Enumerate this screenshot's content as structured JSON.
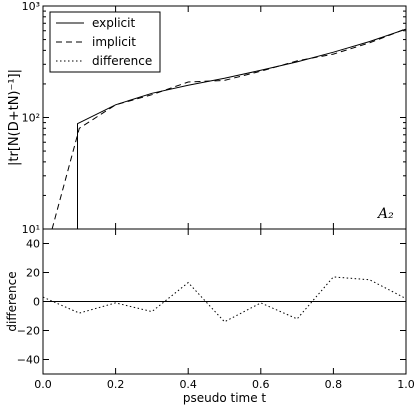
{
  "chart_data": [
    {
      "type": "line",
      "y_scale": "log",
      "ylim": [
        10,
        1000
      ],
      "xlim": [
        0.0,
        1.0
      ],
      "ylabel": "|tr[N(D+tN)⁻¹]|",
      "y_tick_labels": [
        "10¹",
        "10²",
        "10³"
      ],
      "y_tick_values": [
        10,
        100,
        1000
      ],
      "annotation": "A₂",
      "legend": {
        "placement": "top-left",
        "entries": [
          "explicit",
          "implicit",
          "difference"
        ]
      },
      "series": [
        {
          "name": "explicit",
          "style": "solid",
          "x": [
            0.095,
            0.095,
            0.2,
            0.3,
            0.4,
            0.5,
            0.6,
            0.7,
            0.8,
            0.9,
            1.0
          ],
          "y": [
            10,
            88,
            130,
            165,
            195,
            225,
            265,
            315,
            385,
            480,
            620
          ]
        },
        {
          "name": "implicit",
          "style": "dashed",
          "x": [
            0.025,
            0.1,
            0.2,
            0.3,
            0.4,
            0.5,
            0.6,
            0.7,
            0.8,
            0.9,
            1.0
          ],
          "y": [
            10,
            80,
            130,
            160,
            208,
            215,
            260,
            322,
            370,
            468,
            625
          ]
        }
      ]
    },
    {
      "type": "line",
      "ylim": [
        -50,
        50
      ],
      "xlim": [
        0.0,
        1.0
      ],
      "xlabel": "pseudo time t",
      "ylabel": "difference",
      "x_ticks": [
        "0.0",
        "0.2",
        "0.4",
        "0.6",
        "0.8",
        "1.0"
      ],
      "y_ticks": [
        "−40",
        "−20",
        "0",
        "20",
        "40"
      ],
      "series": [
        {
          "name": "difference",
          "style": "dotted",
          "x": [
            0.0,
            0.1,
            0.2,
            0.3,
            0.4,
            0.5,
            0.6,
            0.7,
            0.8,
            0.9,
            1.0
          ],
          "y": [
            3,
            -8,
            -1,
            -7,
            13,
            -14,
            -1,
            -12,
            17,
            15,
            2
          ]
        }
      ]
    }
  ]
}
